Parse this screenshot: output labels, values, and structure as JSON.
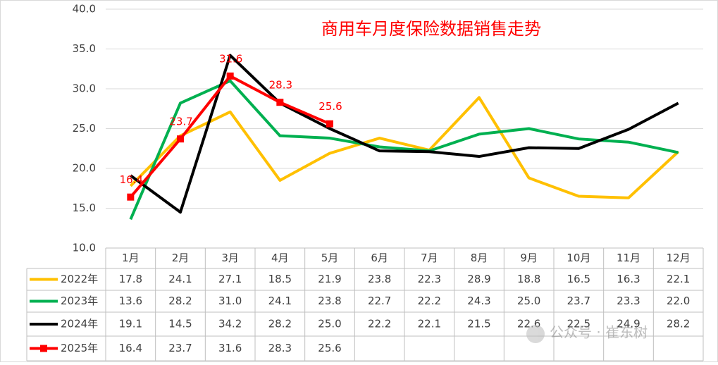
{
  "chart_data": {
    "type": "line",
    "title": "商用车月度保险数据销售走势",
    "categories": [
      "1月",
      "2月",
      "3月",
      "4月",
      "5月",
      "6月",
      "7月",
      "8月",
      "9月",
      "10月",
      "11月",
      "12月"
    ],
    "series": [
      {
        "name": "2022年",
        "color": "#FFC000",
        "values": [
          17.8,
          24.1,
          27.1,
          18.5,
          21.9,
          23.8,
          22.3,
          28.9,
          18.8,
          16.5,
          16.3,
          22.1
        ],
        "value_labels": [
          "17.8",
          "24.1",
          "27.1",
          "18.5",
          "21.9",
          "23.8",
          "22.3",
          "28.9",
          "18.8",
          "16.5",
          "16.3",
          "22.1"
        ]
      },
      {
        "name": "2023年",
        "color": "#00B050",
        "values": [
          13.6,
          28.2,
          31.0,
          24.1,
          23.8,
          22.7,
          22.2,
          24.3,
          25.0,
          23.7,
          23.3,
          22.0
        ],
        "value_labels": [
          "13.6",
          "28.2",
          "31.0",
          "24.1",
          "23.8",
          "22.7",
          "22.2",
          "24.3",
          "25.0",
          "23.7",
          "23.3",
          "22.0"
        ]
      },
      {
        "name": "2024年",
        "color": "#000000",
        "values": [
          19.1,
          14.5,
          34.2,
          28.2,
          25.0,
          22.2,
          22.1,
          21.5,
          22.6,
          22.5,
          24.9,
          28.2
        ],
        "value_labels": [
          "19.1",
          "14.5",
          "34.2",
          "28.2",
          "25.0",
          "22.2",
          "22.1",
          "21.5",
          "22.6",
          "22.5",
          "24.9",
          "28.2"
        ]
      },
      {
        "name": "2025年",
        "color": "#FF0000",
        "marker": "square",
        "data_labels": true,
        "values": [
          16.4,
          23.7,
          31.6,
          28.3,
          25.6,
          null,
          null,
          null,
          null,
          null,
          null,
          null
        ],
        "value_labels": [
          "16.4",
          "23.7",
          "31.6",
          "28.3",
          "25.6",
          null,
          null,
          null,
          null,
          null,
          null,
          null
        ]
      }
    ],
    "ylim": [
      10,
      40
    ],
    "yticks": [
      {
        "value": 10,
        "label": "10.0"
      },
      {
        "value": 15,
        "label": "15.0"
      },
      {
        "value": 20,
        "label": "20.0"
      },
      {
        "value": 25,
        "label": "25.0"
      },
      {
        "value": 30,
        "label": "30.0"
      },
      {
        "value": 35,
        "label": "35.0"
      },
      {
        "value": 40,
        "label": "40.0"
      }
    ],
    "grid": true,
    "watermark": "公众号 · 崔东树"
  }
}
